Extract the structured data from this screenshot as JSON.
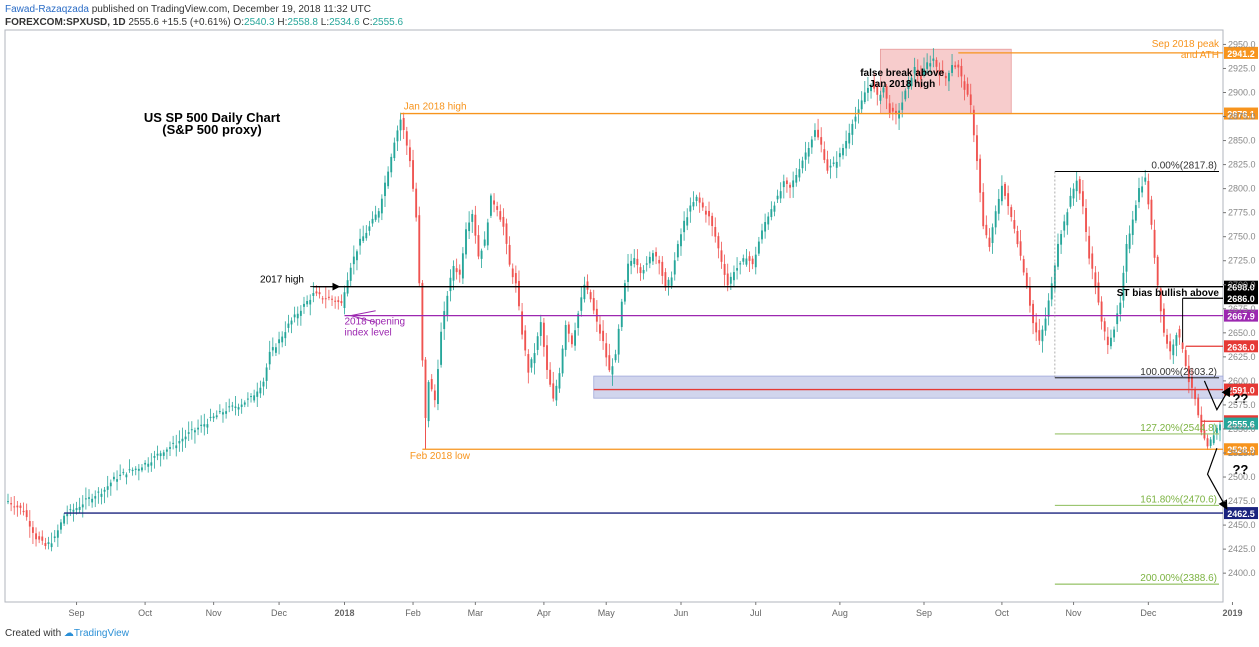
{
  "header": {
    "author": "Fawad-Razaqzada",
    "published": " published on TradingView.com, December 19, 2018 11:32 UTC",
    "symbol": "FOREXCOM:SPXUSD, 1D",
    "last": "2555.6",
    "change": "+15.5 (+0.61%)",
    "o_label": "O:",
    "o": "2540.3",
    "h_label": "H:",
    "h": "2558.8",
    "l_label": "L:",
    "l": "2534.6",
    "c_label": "C:",
    "c": "2555.6"
  },
  "footer": {
    "created": "Created with",
    "brand": "TradingView"
  },
  "colors": {
    "up": "#26a69a",
    "down": "#ef5350",
    "orange": "#f7941d",
    "black": "#000000",
    "purple": "#9c27b0",
    "red": "#e53935",
    "blue": "#1a237e",
    "green": "#7cb342",
    "zone": "#c5cae9",
    "pink": "#f4b6b6"
  },
  "chart_data": {
    "type": "candlestick",
    "title": "US SP 500 Daily Chart",
    "subtitle": "(S&P 500 proxy)",
    "ylim": [
      2370,
      2965
    ],
    "y_ticks": [
      2400,
      2425,
      2450,
      2475,
      2500,
      2525,
      2550,
      2575,
      2600,
      2625,
      2650,
      2675,
      2700,
      2725,
      2750,
      2775,
      2800,
      2825,
      2850,
      2875,
      2900,
      2925,
      2950
    ],
    "x_ticks": [
      {
        "label": "Sep",
        "bold": false,
        "t": 22
      },
      {
        "label": "Oct",
        "bold": false,
        "t": 44
      },
      {
        "label": "Nov",
        "bold": false,
        "t": 66
      },
      {
        "label": "Dec",
        "bold": false,
        "t": 87
      },
      {
        "label": "2018",
        "bold": true,
        "t": 108
      },
      {
        "label": "Feb",
        "bold": false,
        "t": 130
      },
      {
        "label": "Mar",
        "bold": false,
        "t": 150
      },
      {
        "label": "Apr",
        "bold": false,
        "t": 172
      },
      {
        "label": "May",
        "bold": false,
        "t": 192
      },
      {
        "label": "Jun",
        "bold": false,
        "t": 216
      },
      {
        "label": "Jul",
        "bold": false,
        "t": 240
      },
      {
        "label": "Aug",
        "bold": false,
        "t": 267
      },
      {
        "label": "Sep",
        "bold": false,
        "t": 294
      },
      {
        "label": "Oct",
        "bold": false,
        "t": 319
      },
      {
        "label": "Nov",
        "bold": false,
        "t": 342
      },
      {
        "label": "Dec",
        "bold": false,
        "t": 366
      },
      {
        "label": "2019",
        "bold": true,
        "t": 393
      }
    ],
    "path": [
      [
        0,
        2475
      ],
      [
        5,
        2465
      ],
      [
        9,
        2437
      ],
      [
        12,
        2428
      ],
      [
        15,
        2436
      ],
      [
        18,
        2460
      ],
      [
        22,
        2468
      ],
      [
        27,
        2480
      ],
      [
        31,
        2487
      ],
      [
        34,
        2498
      ],
      [
        38,
        2505
      ],
      [
        42,
        2510
      ],
      [
        46,
        2518
      ],
      [
        50,
        2528
      ],
      [
        54,
        2535
      ],
      [
        58,
        2545
      ],
      [
        62,
        2553
      ],
      [
        66,
        2562
      ],
      [
        70,
        2570
      ],
      [
        74,
        2575
      ],
      [
        78,
        2582
      ],
      [
        82,
        2600
      ],
      [
        84,
        2628
      ],
      [
        87,
        2642
      ],
      [
        90,
        2658
      ],
      [
        94,
        2675
      ],
      [
        98,
        2690
      ],
      [
        100,
        2688
      ],
      [
        104,
        2685
      ],
      [
        107,
        2680
      ],
      [
        108,
        2695
      ],
      [
        110,
        2720
      ],
      [
        113,
        2745
      ],
      [
        116,
        2760
      ],
      [
        119,
        2778
      ],
      [
        122,
        2820
      ],
      [
        124,
        2850
      ],
      [
        126,
        2872
      ],
      [
        127,
        2860
      ],
      [
        129,
        2830
      ],
      [
        131,
        2770
      ],
      [
        132,
        2700
      ],
      [
        133,
        2620
      ],
      [
        134,
        2560
      ],
      [
        135,
        2600
      ],
      [
        137,
        2580
      ],
      [
        139,
        2650
      ],
      [
        141,
        2690
      ],
      [
        143,
        2720
      ],
      [
        145,
        2710
      ],
      [
        147,
        2760
      ],
      [
        149,
        2775
      ],
      [
        151,
        2730
      ],
      [
        153,
        2745
      ],
      [
        155,
        2790
      ],
      [
        157,
        2780
      ],
      [
        159,
        2760
      ],
      [
        161,
        2720
      ],
      [
        163,
        2700
      ],
      [
        165,
        2650
      ],
      [
        167,
        2610
      ],
      [
        169,
        2630
      ],
      [
        171,
        2660
      ],
      [
        173,
        2610
      ],
      [
        175,
        2580
      ],
      [
        177,
        2610
      ],
      [
        179,
        2660
      ],
      [
        181,
        2640
      ],
      [
        183,
        2670
      ],
      [
        185,
        2700
      ],
      [
        187,
        2685
      ],
      [
        189,
        2660
      ],
      [
        191,
        2640
      ],
      [
        193,
        2610
      ],
      [
        195,
        2625
      ],
      [
        197,
        2680
      ],
      [
        199,
        2720
      ],
      [
        201,
        2730
      ],
      [
        203,
        2715
      ],
      [
        205,
        2720
      ],
      [
        207,
        2735
      ],
      [
        209,
        2725
      ],
      [
        211,
        2695
      ],
      [
        213,
        2710
      ],
      [
        215,
        2740
      ],
      [
        217,
        2765
      ],
      [
        219,
        2780
      ],
      [
        221,
        2790
      ],
      [
        223,
        2780
      ],
      [
        225,
        2770
      ],
      [
        227,
        2750
      ],
      [
        229,
        2725
      ],
      [
        231,
        2700
      ],
      [
        233,
        2715
      ],
      [
        235,
        2720
      ],
      [
        237,
        2730
      ],
      [
        239,
        2720
      ],
      [
        241,
        2745
      ],
      [
        243,
        2765
      ],
      [
        245,
        2780
      ],
      [
        247,
        2790
      ],
      [
        249,
        2805
      ],
      [
        251,
        2800
      ],
      [
        253,
        2815
      ],
      [
        255,
        2830
      ],
      [
        257,
        2845
      ],
      [
        259,
        2860
      ],
      [
        261,
        2845
      ],
      [
        263,
        2820
      ],
      [
        265,
        2825
      ],
      [
        267,
        2835
      ],
      [
        269,
        2850
      ],
      [
        271,
        2870
      ],
      [
        273,
        2880
      ],
      [
        275,
        2900
      ],
      [
        277,
        2910
      ],
      [
        279,
        2895
      ],
      [
        281,
        2905
      ],
      [
        283,
        2880
      ],
      [
        285,
        2875
      ],
      [
        287,
        2890
      ],
      [
        289,
        2910
      ],
      [
        291,
        2925
      ],
      [
        293,
        2915
      ],
      [
        295,
        2930
      ],
      [
        297,
        2935
      ],
      [
        299,
        2920
      ],
      [
        301,
        2915
      ],
      [
        303,
        2930
      ],
      [
        305,
        2925
      ],
      [
        307,
        2905
      ],
      [
        309,
        2885
      ],
      [
        311,
        2830
      ],
      [
        313,
        2760
      ],
      [
        315,
        2740
      ],
      [
        317,
        2775
      ],
      [
        319,
        2805
      ],
      [
        321,
        2780
      ],
      [
        323,
        2760
      ],
      [
        325,
        2730
      ],
      [
        327,
        2700
      ],
      [
        329,
        2660
      ],
      [
        331,
        2640
      ],
      [
        333,
        2665
      ],
      [
        335,
        2700
      ],
      [
        337,
        2745
      ],
      [
        339,
        2765
      ],
      [
        341,
        2790
      ],
      [
        343,
        2810
      ],
      [
        345,
        2780
      ],
      [
        347,
        2730
      ],
      [
        349,
        2700
      ],
      [
        351,
        2660
      ],
      [
        353,
        2640
      ],
      [
        355,
        2655
      ],
      [
        357,
        2680
      ],
      [
        359,
        2740
      ],
      [
        361,
        2770
      ],
      [
        363,
        2800
      ],
      [
        365,
        2810
      ],
      [
        367,
        2760
      ],
      [
        369,
        2700
      ],
      [
        371,
        2650
      ],
      [
        373,
        2630
      ],
      [
        375,
        2650
      ],
      [
        377,
        2635
      ],
      [
        379,
        2600
      ],
      [
        381,
        2580
      ],
      [
        383,
        2545
      ],
      [
        385,
        2530
      ],
      [
        387,
        2545
      ],
      [
        389,
        2556
      ]
    ],
    "n_bars": 390,
    "levels": [
      {
        "name": "sep-2018-peak",
        "value": 2941.2,
        "color": "#f7941d",
        "x0": "t:305",
        "label": "Sep 2018 peak\nand ATH",
        "tag": "2941.2",
        "tag_bg": "#f7941d",
        "tag_fg": "#fff"
      },
      {
        "name": "jan-2018-high",
        "value": 2878.1,
        "color": "#f7941d",
        "x0": "t:126",
        "label": "Jan 2018 high",
        "tag": "2878.1",
        "tag_bg": "#f7941d",
        "tag_fg": "#fff"
      },
      {
        "name": "2017-high",
        "value": 2698.0,
        "color": "#000000",
        "x0": "t:98",
        "label": "2017 high",
        "tag": "2698.0",
        "tag_bg": "#000000",
        "tag_fg": "#fff"
      },
      {
        "name": "st-bias",
        "value": 2686.0,
        "color": "#000000",
        "x0": "t:377",
        "label": "ST bias bullish above",
        "tag": "2686.0",
        "tag_bg": "#000000",
        "tag_fg": "#fff"
      },
      {
        "name": "2018-open",
        "value": 2667.9,
        "color": "#9c27b0",
        "x0": "t:108",
        "label": "2018 opening\nindex level",
        "tag": "2667.9",
        "tag_bg": "#9c27b0",
        "tag_fg": "#fff"
      },
      {
        "name": "level-2636",
        "value": 2636.0,
        "color": "#e53935",
        "x0": "t:378",
        "label": "",
        "tag": "2636.0",
        "tag_bg": "#e53935",
        "tag_fg": "#fff"
      },
      {
        "name": "level-2591",
        "value": 2591.0,
        "color": "#e53935",
        "x0": "t:188",
        "label": "",
        "tag": "2591.0",
        "tag_bg": "#e53935",
        "tag_fg": "#fff"
      },
      {
        "name": "level-2558",
        "value": 2558.0,
        "color": "#e53935",
        "x0": "t:383",
        "label": "",
        "tag": "2558.0",
        "tag_bg": "#e53935",
        "tag_fg": "#fff"
      },
      {
        "name": "current",
        "value": 2555.6,
        "color": "#26a69a",
        "x0": "none",
        "label": "",
        "tag": "2555.6",
        "tag_bg": "#26a69a",
        "tag_fg": "#fff"
      },
      {
        "name": "feb-2018-low",
        "value": 2528.9,
        "color": "#f7941d",
        "x0": "t:133",
        "label": "Feb 2018 low",
        "tag": "2528.9",
        "tag_bg": "#f7941d",
        "tag_fg": "#fff"
      },
      {
        "name": "level-2462",
        "value": 2462.5,
        "color": "#1a237e",
        "x0": "t:18",
        "label": "",
        "tag": "2462.5",
        "tag_bg": "#1a237e",
        "tag_fg": "#fff"
      }
    ],
    "fib": [
      {
        "label": "0.00%(2817.8)",
        "value": 2817.8,
        "color": "#000000"
      },
      {
        "label": "100.00%(2603.2)",
        "value": 2603.2,
        "color": "#000000"
      },
      {
        "label": "127.20%(2544.8)",
        "value": 2544.8,
        "color": "#7cb342"
      },
      {
        "label": "161.80%(2470.6)",
        "value": 2470.6,
        "color": "#7cb342"
      },
      {
        "label": "200.00%(2388.6)",
        "value": 2388.6,
        "color": "#7cb342"
      }
    ],
    "annotations": {
      "false_break": "false break above\nJan 2018 high",
      "q1": "??",
      "q2": "??"
    }
  }
}
